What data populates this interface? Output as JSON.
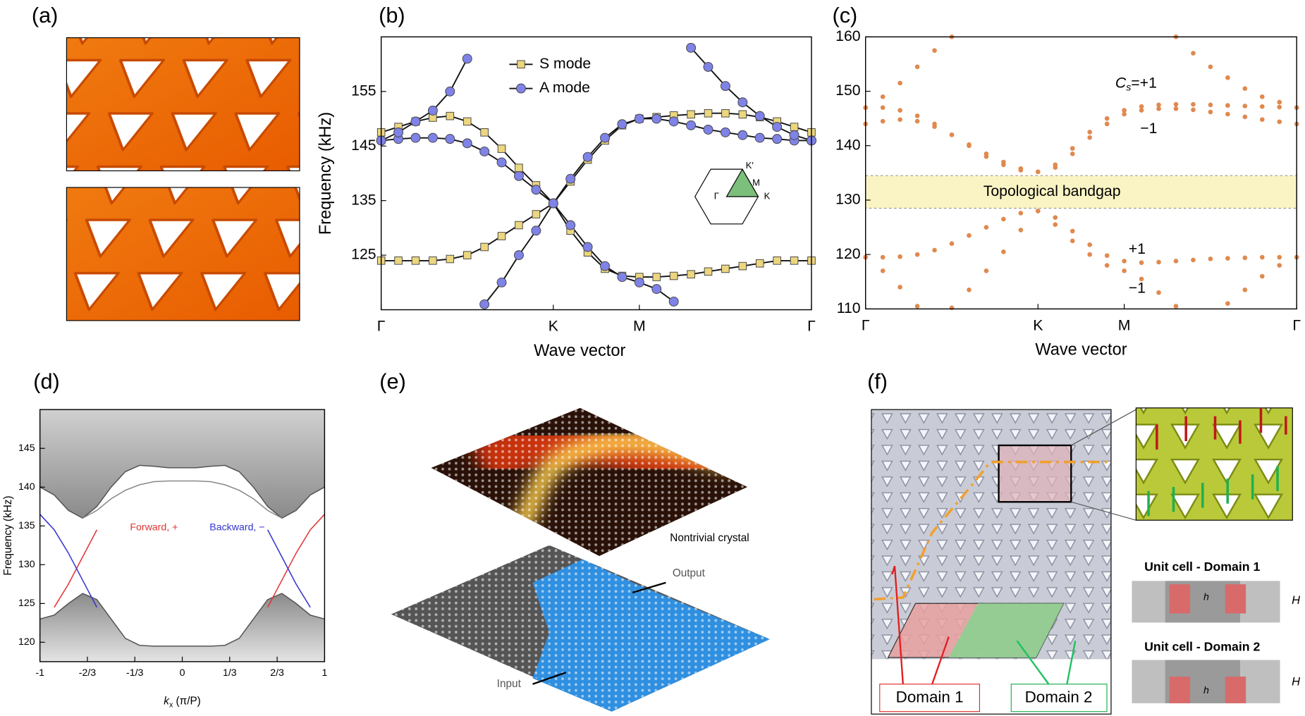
{
  "panel_labels": [
    "(a)",
    "(b)",
    "(c)",
    "(d)",
    "(e)",
    "(f)"
  ],
  "chart_data": [
    {
      "type": "line",
      "y_label": "Frequency (kHz)",
      "x_label": "Wave vector",
      "x": [
        0,
        0.1,
        0.2,
        0.3,
        0.4,
        0.5,
        0.6,
        0.7,
        0.8,
        0.9,
        1,
        1.1,
        1.2,
        1.3,
        1.4,
        1.5,
        1.6,
        1.7,
        1.8,
        1.9,
        2,
        2.1,
        2.2,
        2.3,
        2.4,
        2.5
      ],
      "xlim": [
        0,
        2.5
      ],
      "xticks": [
        {
          "value": 0,
          "label": "Γ"
        },
        {
          "value": 1,
          "label": "K"
        },
        {
          "value": 1.5,
          "label": "M"
        },
        {
          "value": 2.5,
          "label": "Γ"
        }
      ],
      "ylim": [
        115,
        165
      ],
      "yticks": [
        125,
        135,
        145,
        155
      ],
      "legend": "upper-center",
      "line_color": "#111",
      "series": [
        {
          "name": "S mode",
          "color": "#ecd67e",
          "marker": "square",
          "bands": [
            {
              "values": [
                147.5,
                148.5,
                149.5,
                150.2,
                150.5,
                149.5,
                147.5,
                144.5,
                141,
                137.8,
                134.5,
                138.5,
                142.5,
                146,
                148.8,
                150,
                150.3,
                150.6,
                150.8,
                151,
                151,
                150.8,
                150.3,
                149.5,
                148.5,
                147.5
              ]
            },
            {
              "values": [
                124,
                124,
                124,
                124,
                124.3,
                125,
                126.5,
                128.5,
                130.5,
                132.5,
                134.5,
                129.5,
                125.5,
                122.5,
                121.2,
                121,
                121,
                121.2,
                121.5,
                122,
                122.5,
                123,
                123.5,
                124,
                124,
                124
              ]
            }
          ]
        },
        {
          "name": "A mode",
          "color": "#7f82e6",
          "marker": "circle",
          "bands": [
            {
              "values": [
                146,
                146.3,
                146.5,
                146.5,
                146.3,
                145.5,
                144,
                142,
                139.5,
                137,
                134.5,
                130.5,
                126.5,
                123,
                121,
                120,
                118.8,
                116.5,
                null,
                null,
                null,
                null,
                null,
                null,
                null,
                null
              ]
            },
            {
              "values": [
                null,
                null,
                null,
                null,
                null,
                null,
                116,
                120,
                125,
                129.5,
                134.5,
                139,
                143,
                146.5,
                149,
                150,
                150,
                149.5,
                148.8,
                148,
                147.5,
                147,
                146.5,
                146.3,
                146,
                146
              ]
            },
            {
              "values": [
                146,
                147.5,
                149.5,
                151.5,
                155,
                161,
                null,
                null,
                null,
                null,
                null,
                null,
                null,
                null,
                null,
                null,
                null,
                null,
                null,
                null,
                null,
                null,
                null,
                null,
                null,
                null
              ]
            },
            {
              "values": [
                null,
                null,
                null,
                null,
                null,
                null,
                null,
                null,
                null,
                null,
                null,
                null,
                null,
                null,
                null,
                null,
                null,
                null,
                163,
                159.5,
                156,
                153,
                150.5,
                148.5,
                147,
                146
              ]
            }
          ]
        }
      ],
      "inset_labels": [
        "K′",
        "M",
        "K",
        "Γ"
      ]
    },
    {
      "type": "line",
      "x_label": "Wave vector",
      "x": [
        0,
        0.1,
        0.2,
        0.3,
        0.4,
        0.5,
        0.6,
        0.7,
        0.8,
        0.9,
        1,
        1.1,
        1.2,
        1.3,
        1.4,
        1.5,
        1.6,
        1.7,
        1.8,
        1.9,
        2,
        2.1,
        2.2,
        2.3,
        2.4,
        2.5
      ],
      "xlim": [
        0,
        2.5
      ],
      "xticks": [
        {
          "value": 0,
          "label": "Γ"
        },
        {
          "value": 1,
          "label": "K"
        },
        {
          "value": 1.5,
          "label": "M"
        },
        {
          "value": 2.5,
          "label": "Γ"
        }
      ],
      "ylim": [
        110,
        160
      ],
      "yticks": [
        110,
        120,
        130,
        140,
        150,
        160
      ],
      "bandgap": {
        "range": [
          128.5,
          134.5
        ],
        "label": "Topological bandgap",
        "color": "#faf4c4"
      },
      "series": [
        {
          "color": "#e0894f",
          "marker": "dot",
          "bands": [
            {
              "values": [
                147,
                147,
                146.5,
                145.5,
                144,
                142,
                140,
                138,
                136.5,
                135.5,
                135.2,
                136.5,
                139.5,
                142.5,
                145,
                146.5,
                147.2,
                147.5,
                147.6,
                147.6,
                147.5,
                147.4,
                147.3,
                147.2,
                147.1,
                147
              ]
            },
            {
              "values": [
                144,
                144.5,
                144.8,
                144.5,
                143.5,
                142,
                140.2,
                138.5,
                137,
                135.8,
                135.2,
                136,
                138.5,
                141.5,
                144,
                145.8,
                146.5,
                146.8,
                146.8,
                146.6,
                146.2,
                145.8,
                145.3,
                144.8,
                144.4,
                144
              ]
            },
            {
              "values": [
                147,
                149,
                151.5,
                154.5,
                157.5,
                160,
                null,
                null,
                null,
                null,
                null,
                null,
                null,
                null,
                null,
                null,
                null,
                null,
                null,
                null,
                null,
                null,
                null,
                null,
                null,
                null
              ]
            },
            {
              "values": [
                null,
                null,
                null,
                null,
                null,
                null,
                null,
                null,
                null,
                null,
                null,
                null,
                null,
                null,
                null,
                null,
                null,
                null,
                160,
                157,
                154.5,
                152.5,
                150.5,
                149,
                148,
                147
              ]
            },
            {
              "values": [
                119.5,
                119.5,
                119.6,
                120,
                120.8,
                122,
                123.5,
                125,
                126.5,
                127.6,
                128,
                126.8,
                124.3,
                121.8,
                119.8,
                118.8,
                118.5,
                118.6,
                118.8,
                119,
                119.2,
                119.3,
                119.4,
                119.5,
                119.5,
                119.5
              ]
            },
            {
              "values": [
                null,
                null,
                null,
                null,
                null,
                110.2,
                113.5,
                117,
                120.5,
                124.5,
                128,
                125.5,
                122.5,
                120,
                118,
                117,
                115.5,
                113,
                110.5,
                null,
                null,
                null,
                null,
                null,
                null,
                null
              ]
            },
            {
              "values": [
                119.5,
                117,
                114,
                110.5,
                null,
                null,
                null,
                null,
                null,
                null,
                null,
                null,
                null,
                null,
                null,
                null,
                null,
                null,
                null,
                null,
                null,
                null,
                null,
                null,
                null,
                null
              ]
            },
            {
              "values": [
                null,
                null,
                null,
                null,
                null,
                null,
                null,
                null,
                null,
                null,
                null,
                null,
                null,
                null,
                null,
                null,
                null,
                null,
                null,
                null,
                null,
                111,
                113.5,
                116,
                118,
                119.5
              ]
            }
          ]
        }
      ],
      "annotations": [
        {
          "parts": [
            "C",
            "s",
            "=+1"
          ]
        },
        {
          "text": "−1"
        },
        {
          "text": "+1"
        },
        {
          "text": "−1"
        }
      ]
    },
    {
      "type": "line",
      "y_label": "Frequency (kHz)",
      "x_label_parts": [
        "k",
        "x",
        " (π/P)"
      ],
      "x": [
        -1,
        -0.9,
        -0.8,
        -0.7,
        -0.6,
        -0.5,
        -0.4,
        -0.3,
        -0.2,
        -0.1,
        0,
        0.1,
        0.2,
        0.3,
        0.4,
        0.5,
        0.6,
        0.7,
        0.8,
        0.9,
        1
      ],
      "xlim": [
        -1,
        1
      ],
      "xticks": [
        -1,
        {
          "value": -0.6667,
          "label": "-2/3"
        },
        {
          "value": -0.3333,
          "label": "-1/3"
        },
        0,
        {
          "value": 0.3333,
          "label": "1/3"
        },
        {
          "value": 0.6667,
          "label": "2/3"
        },
        1
      ],
      "ylim": [
        117.5,
        150
      ],
      "yticks": [
        120,
        125,
        130,
        135,
        140,
        145
      ],
      "series": [
        {
          "color": "#555555",
          "fill": "above",
          "values": [
            140,
            139,
            137,
            136,
            137.5,
            140,
            142,
            142.8,
            142.7,
            142.5,
            142.5,
            142.5,
            142.7,
            142.8,
            142,
            140,
            137.5,
            136,
            137,
            139,
            140
          ]
        },
        {
          "color": "#555555",
          "fill": "below",
          "values": [
            123,
            123.5,
            125,
            126.3,
            125.5,
            123,
            120.5,
            119.6,
            119.5,
            119.5,
            119.5,
            119.5,
            119.5,
            119.6,
            120.5,
            123,
            125.5,
            126.3,
            125,
            123.5,
            123
          ]
        },
        {
          "color": "#888888",
          "values": [
            null,
            null,
            null,
            136,
            137,
            138.5,
            139.6,
            140.3,
            140.7,
            140.8,
            140.8,
            140.8,
            140.7,
            140.3,
            139.6,
            138.5,
            137,
            136,
            null,
            null,
            null
          ]
        },
        {
          "color": "#e03535",
          "values": [
            null,
            124.5,
            127.5,
            131,
            134.5,
            null,
            null,
            null,
            null,
            null,
            null,
            null,
            null,
            null,
            null,
            null,
            124.5,
            128,
            131.5,
            134.5,
            136.5
          ]
        },
        {
          "color": "#3535d0",
          "values": [
            136.5,
            134.5,
            131.5,
            128,
            124.5,
            null,
            null,
            null,
            null,
            null,
            null,
            null,
            null,
            null,
            null,
            null,
            134.5,
            131,
            127.5,
            124.5,
            null
          ]
        }
      ],
      "annotations": [
        {
          "text": "Forward, +",
          "color": "#e03535"
        },
        {
          "text": "Backward, −",
          "color": "#3535d0"
        }
      ]
    }
  ],
  "panel_e": {
    "top": "Nontrivial crystal",
    "output": "Output",
    "input": "Input"
  },
  "panel_f": {
    "domains": [
      "Domain 1",
      "Domain 2"
    ],
    "unit_cells": [
      "Unit cell - Domain 1",
      "Unit cell - Domain 2"
    ],
    "h": "h",
    "H": "H"
  }
}
